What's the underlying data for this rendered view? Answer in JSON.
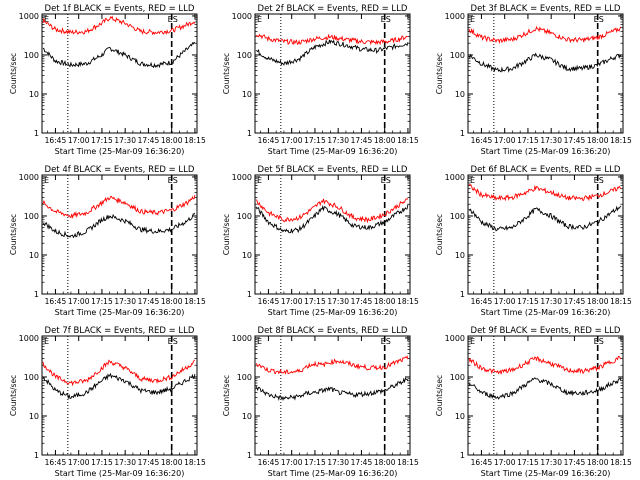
{
  "figure": {
    "x_ticks": [
      "16:45",
      "17:00",
      "17:15",
      "17:30",
      "17:45",
      "18:00",
      "18:15"
    ],
    "x_label": "Start Time (25-Mar-09 16:36:20)",
    "y_label": "Counts/sec",
    "y_ticks": [
      "1",
      "10",
      "100",
      "1000"
    ],
    "colors": {
      "events": "#000000",
      "lld": "#ff0000"
    },
    "corner_left": "E",
    "corner_right": "ES"
  },
  "chart_data": [
    {
      "type": "line",
      "title": "Det 1f BLACK = Events, RED = LLD",
      "x_range": [
        "16:36:20",
        "18:16:20"
      ],
      "y_scale": "log",
      "ylim": [
        1,
        1000
      ],
      "dotted_line_x": "16:53",
      "dashed_line_x": "18:00",
      "series": [
        {
          "x": [
            "16:37",
            "16:45",
            "16:55",
            "17:05",
            "17:15",
            "17:20",
            "17:30",
            "17:40",
            "17:50",
            "18:00",
            "18:10",
            "18:15"
          ],
          "values": [
            150,
            70,
            55,
            60,
            100,
            150,
            100,
            60,
            55,
            65,
            140,
            200
          ]
        },
        {
          "x": [
            "16:37",
            "16:45",
            "16:55",
            "17:05",
            "17:15",
            "17:20",
            "17:30",
            "17:40",
            "17:50",
            "18:00",
            "18:10",
            "18:15"
          ],
          "values": [
            750,
            450,
            380,
            400,
            650,
            900,
            650,
            400,
            380,
            420,
            600,
            750
          ]
        }
      ]
    },
    {
      "type": "line",
      "title": "Det 2f BLACK = Events, RED = LLD",
      "x_range": [
        "16:36:20",
        "18:16:20"
      ],
      "y_scale": "log",
      "ylim": [
        1,
        1000
      ],
      "dotted_line_x": "16:53",
      "dashed_line_x": "18:00",
      "series": [
        {
          "x": [
            "16:37",
            "16:45",
            "16:55",
            "17:05",
            "17:15",
            "17:25",
            "17:35",
            "17:45",
            "17:55",
            "18:05",
            "18:15"
          ],
          "values": [
            130,
            80,
            60,
            80,
            160,
            220,
            180,
            140,
            130,
            160,
            200
          ]
        },
        {
          "x": [
            "16:37",
            "16:45",
            "16:55",
            "17:05",
            "17:15",
            "17:25",
            "17:35",
            "17:45",
            "17:55",
            "18:05",
            "18:15"
          ],
          "values": [
            350,
            260,
            220,
            210,
            260,
            290,
            250,
            220,
            210,
            230,
            300
          ]
        }
      ]
    },
    {
      "type": "line",
      "title": "Det 3f BLACK = Events, RED = LLD",
      "x_range": [
        "16:36:20",
        "18:16:20"
      ],
      "y_scale": "log",
      "ylim": [
        1,
        1000
      ],
      "dotted_line_x": "16:53",
      "dashed_line_x": "18:00",
      "series": [
        {
          "x": [
            "16:37",
            "16:45",
            "16:55",
            "17:05",
            "17:15",
            "17:20",
            "17:30",
            "17:40",
            "17:50",
            "18:00",
            "18:10",
            "18:15"
          ],
          "values": [
            100,
            60,
            40,
            45,
            75,
            100,
            75,
            45,
            45,
            55,
            85,
            100
          ]
        },
        {
          "x": [
            "16:37",
            "16:45",
            "16:55",
            "17:05",
            "17:15",
            "17:20",
            "17:30",
            "17:40",
            "17:50",
            "18:00",
            "18:10",
            "18:15"
          ],
          "values": [
            450,
            280,
            230,
            250,
            380,
            480,
            360,
            250,
            240,
            280,
            400,
            480
          ]
        }
      ]
    },
    {
      "type": "line",
      "title": "Det 4f BLACK = Events, RED = LLD",
      "x_range": [
        "16:36:20",
        "18:16:20"
      ],
      "y_scale": "log",
      "ylim": [
        1,
        1000
      ],
      "dotted_line_x": "16:53",
      "dashed_line_x": "18:00",
      "series": [
        {
          "x": [
            "16:37",
            "16:45",
            "16:55",
            "17:05",
            "17:15",
            "17:20",
            "17:30",
            "17:40",
            "17:50",
            "18:00",
            "18:10",
            "18:15"
          ],
          "values": [
            70,
            40,
            30,
            40,
            80,
            100,
            75,
            45,
            40,
            45,
            75,
            110
          ]
        },
        {
          "x": [
            "16:37",
            "16:45",
            "16:55",
            "17:05",
            "17:15",
            "17:20",
            "17:30",
            "17:40",
            "17:50",
            "18:00",
            "18:10",
            "18:15"
          ],
          "values": [
            220,
            130,
            100,
            120,
            220,
            300,
            220,
            130,
            120,
            140,
            220,
            320
          ]
        }
      ]
    },
    {
      "type": "line",
      "title": "Det 5f BLACK = Events, RED = LLD",
      "x_range": [
        "16:36:20",
        "18:16:20"
      ],
      "y_scale": "log",
      "ylim": [
        1,
        1000
      ],
      "dotted_line_x": "16:53",
      "dashed_line_x": "18:00",
      "series": [
        {
          "x": [
            "16:37",
            "16:45",
            "16:55",
            "17:05",
            "17:15",
            "17:20",
            "17:30",
            "17:40",
            "17:50",
            "18:00",
            "18:10",
            "18:15"
          ],
          "values": [
            170,
            70,
            40,
            45,
            100,
            160,
            110,
            55,
            50,
            70,
            130,
            180
          ]
        },
        {
          "x": [
            "16:37",
            "16:45",
            "16:55",
            "17:05",
            "17:15",
            "17:20",
            "17:30",
            "17:40",
            "17:50",
            "18:00",
            "18:10",
            "18:15"
          ],
          "values": [
            250,
            120,
            80,
            90,
            170,
            250,
            170,
            90,
            80,
            110,
            200,
            260
          ]
        }
      ]
    },
    {
      "type": "line",
      "title": "Det 6f BLACK = Events, RED = LLD",
      "x_range": [
        "16:36:20",
        "18:16:20"
      ],
      "y_scale": "log",
      "ylim": [
        1,
        1000
      ],
      "dotted_line_x": "16:53",
      "dashed_line_x": "18:00",
      "series": [
        {
          "x": [
            "16:37",
            "16:45",
            "16:55",
            "17:05",
            "17:15",
            "17:20",
            "17:30",
            "17:40",
            "17:50",
            "18:00",
            "18:10",
            "18:15"
          ],
          "values": [
            160,
            70,
            45,
            50,
            100,
            150,
            100,
            55,
            50,
            70,
            130,
            180
          ]
        },
        {
          "x": [
            "16:37",
            "16:45",
            "16:55",
            "17:05",
            "17:15",
            "17:20",
            "17:30",
            "17:40",
            "17:50",
            "18:00",
            "18:10",
            "18:15"
          ],
          "values": [
            600,
            350,
            280,
            300,
            420,
            520,
            400,
            290,
            280,
            330,
            450,
            550
          ]
        }
      ]
    },
    {
      "type": "line",
      "title": "Det 7f BLACK = Events, RED = LLD",
      "x_range": [
        "16:36:20",
        "18:16:20"
      ],
      "y_scale": "log",
      "ylim": [
        1,
        1000
      ],
      "dotted_line_x": "16:53",
      "dashed_line_x": "18:00",
      "series": [
        {
          "x": [
            "16:37",
            "16:45",
            "16:55",
            "17:05",
            "17:15",
            "17:20",
            "17:30",
            "17:40",
            "17:50",
            "18:00",
            "18:10",
            "18:15"
          ],
          "values": [
            100,
            45,
            30,
            40,
            80,
            110,
            80,
            45,
            40,
            50,
            85,
            110
          ]
        },
        {
          "x": [
            "16:37",
            "16:45",
            "16:55",
            "17:05",
            "17:15",
            "17:20",
            "17:30",
            "17:40",
            "17:50",
            "18:00",
            "18:10",
            "18:15"
          ],
          "values": [
            220,
            100,
            70,
            80,
            170,
            250,
            170,
            90,
            80,
            100,
            180,
            250
          ]
        }
      ]
    },
    {
      "type": "line",
      "title": "Det 8f BLACK = Events, RED = LLD",
      "x_range": [
        "16:36:20",
        "18:16:20"
      ],
      "y_scale": "log",
      "ylim": [
        1,
        1000
      ],
      "dotted_line_x": "16:53",
      "dashed_line_x": "18:00",
      "series": [
        {
          "x": [
            "16:37",
            "16:45",
            "16:55",
            "17:05",
            "17:10",
            "17:15",
            "17:20",
            "17:25",
            "17:30",
            "17:40",
            "17:50",
            "18:00",
            "18:10",
            "18:15"
          ],
          "values": [
            55,
            35,
            28,
            32,
            38,
            40,
            45,
            50,
            40,
            35,
            38,
            45,
            70,
            90
          ]
        },
        {
          "x": [
            "16:37",
            "16:45",
            "16:55",
            "17:05",
            "17:10",
            "17:15",
            "17:20",
            "17:25",
            "17:30",
            "17:40",
            "17:50",
            "18:00",
            "18:10",
            "18:15"
          ],
          "values": [
            220,
            150,
            130,
            140,
            190,
            220,
            200,
            240,
            260,
            200,
            170,
            180,
            260,
            300
          ]
        }
      ]
    },
    {
      "type": "line",
      "title": "Det 9f BLACK = Events, RED = LLD",
      "x_range": [
        "16:36:20",
        "18:16:20"
      ],
      "y_scale": "log",
      "ylim": [
        1,
        1000
      ],
      "dotted_line_x": "16:53",
      "dashed_line_x": "18:00",
      "series": [
        {
          "x": [
            "16:37",
            "16:45",
            "16:55",
            "17:05",
            "17:15",
            "17:20",
            "17:30",
            "17:40",
            "17:50",
            "18:00",
            "18:10",
            "18:15"
          ],
          "values": [
            70,
            40,
            30,
            38,
            70,
            90,
            65,
            40,
            38,
            45,
            70,
            90
          ]
        },
        {
          "x": [
            "16:37",
            "16:45",
            "16:55",
            "17:05",
            "17:15",
            "17:20",
            "17:30",
            "17:40",
            "17:50",
            "18:00",
            "18:10",
            "18:15"
          ],
          "values": [
            280,
            170,
            130,
            150,
            240,
            300,
            220,
            150,
            140,
            170,
            260,
            320
          ]
        }
      ]
    }
  ]
}
